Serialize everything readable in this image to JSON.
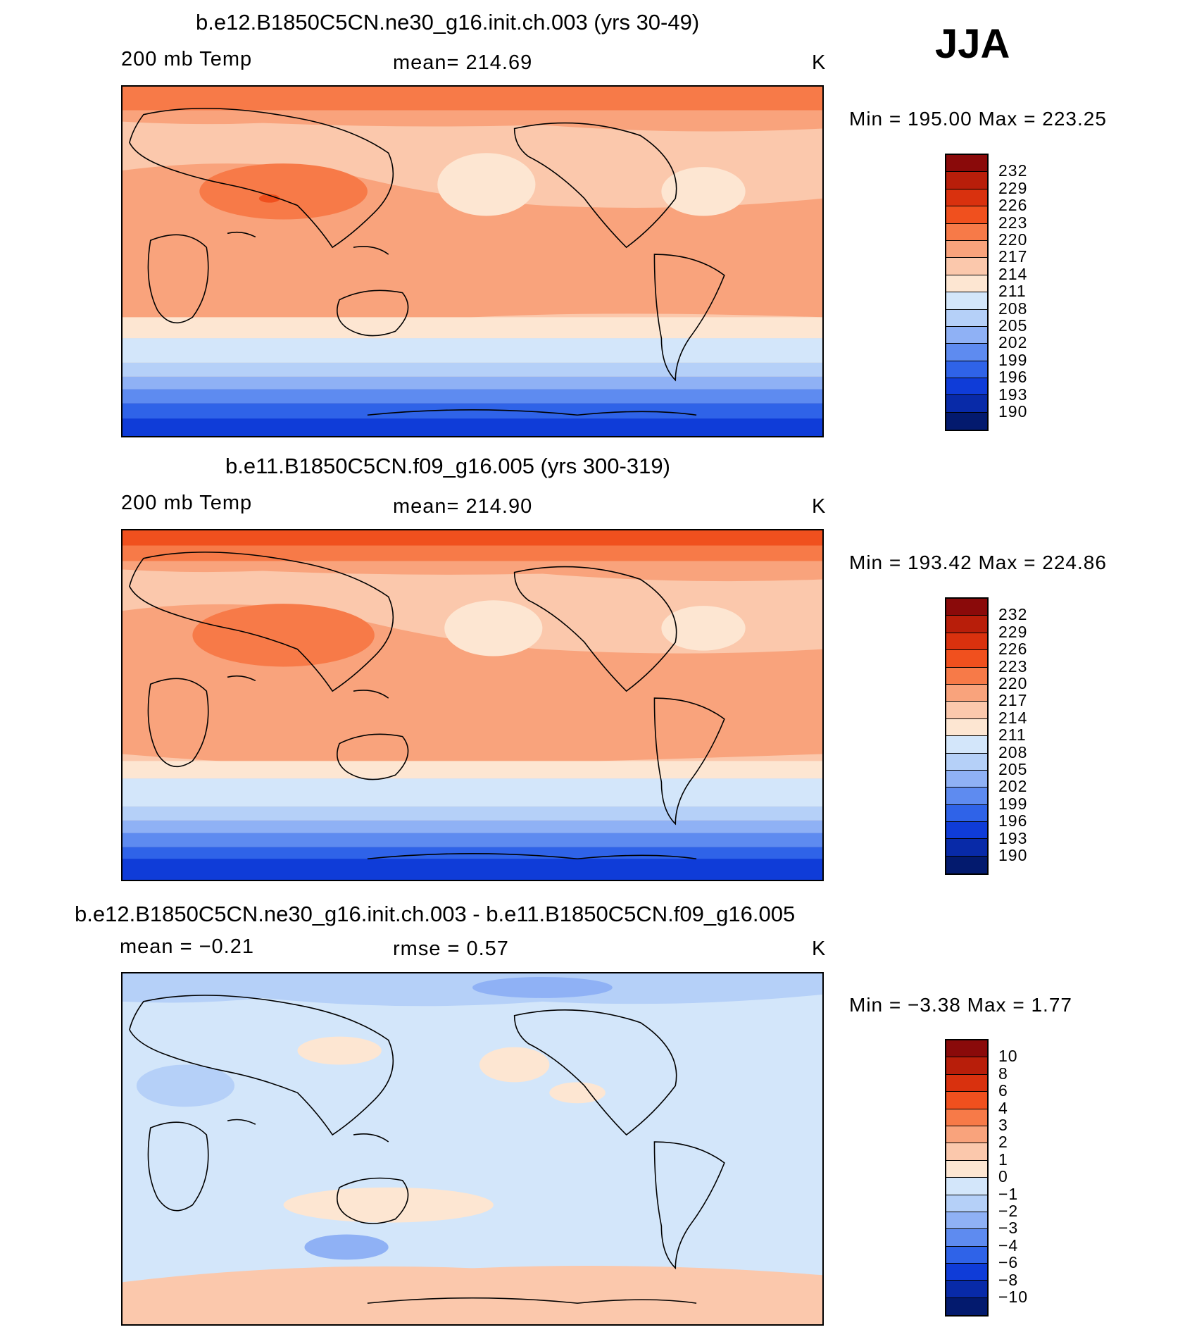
{
  "season": "JJA",
  "panels": [
    {
      "title": "b.e12.B1850C5CN.ne30_g16.init.ch.003 (yrs 30-49)",
      "left_label": "200 mb Temp",
      "center_label": "mean= 214.69",
      "right_label": "K",
      "minmax": "Min = 195.00 Max = 223.25"
    },
    {
      "title": "b.e11.B1850C5CN.f09_g16.005 (yrs 300-319)",
      "left_label": "200 mb Temp",
      "center_label": "mean= 214.90",
      "right_label": "K",
      "minmax": "Min = 193.42 Max = 224.86"
    },
    {
      "title": "b.e12.B1850C5CN.ne30_g16.init.ch.003 - b.e11.B1850C5CN.f09_g16.005",
      "left_label": "mean =   −0.21",
      "center_label": "rmse =    0.57",
      "right_label": "K",
      "minmax": "Min =   −3.38 Max =    1.77"
    }
  ],
  "colorbar_temp": {
    "labels": [
      "232",
      "229",
      "226",
      "223",
      "220",
      "217",
      "214",
      "211",
      "208",
      "205",
      "202",
      "199",
      "196",
      "193",
      "190"
    ],
    "colors": [
      "#8a0a0a",
      "#b81e0a",
      "#d9310e",
      "#f0501e",
      "#f77a48",
      "#f9a37c",
      "#fbc8ac",
      "#fde6d2",
      "#d3e6fa",
      "#b5d0f8",
      "#8fb1f5",
      "#5e8bf0",
      "#2f63e8",
      "#0f3cd8",
      "#082aa8",
      "#031a6e"
    ]
  },
  "colorbar_diff": {
    "labels": [
      "10",
      "8",
      "6",
      "4",
      "3",
      "2",
      "1",
      "0",
      "−1",
      "−2",
      "−3",
      "−4",
      "−6",
      "−8",
      "−10"
    ],
    "colors": [
      "#8a0a0a",
      "#b81e0a",
      "#d9310e",
      "#f0501e",
      "#f77a48",
      "#f9a37c",
      "#fbc8ac",
      "#fde6d2",
      "#d3e6fa",
      "#b5d0f8",
      "#8fb1f5",
      "#5e8bf0",
      "#2f63e8",
      "#0f3cd8",
      "#082aa8",
      "#031a6e"
    ]
  }
}
